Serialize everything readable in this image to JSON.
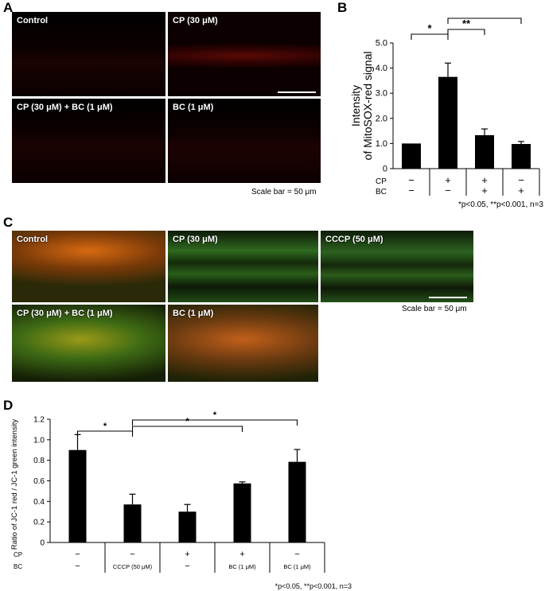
{
  "panel_labels": {
    "a": "A",
    "b": "B",
    "c": "C",
    "d": "D"
  },
  "panel_a": {
    "images": [
      "Control",
      "CP (30 μM)",
      "CP (30 μM) + BC (1 μM)",
      "BC (1 μM)"
    ],
    "scale_bar": "Scale bar = 50 μm"
  },
  "panel_c": {
    "images": [
      "Control",
      "CP (30 μM)",
      "CCCP (50 μM)",
      "CP (30 μM) + BC (1 μM)",
      "BC (1 μM)"
    ],
    "scale_bar": "Scale bar = 50 μm"
  },
  "colors": {
    "bar": "#000000",
    "red_stain": "#ff2a10",
    "green_stain": "#3fbf3a",
    "orange_stain": "#ff9a1e"
  },
  "chart_data": [
    {
      "type": "bar",
      "panel": "B",
      "categories": [
        "1",
        "2",
        "3",
        "4"
      ],
      "values": [
        1.0,
        3.65,
        1.33,
        0.98
      ],
      "errors": [
        0.0,
        0.55,
        0.25,
        0.1
      ],
      "ylabel_line1": "Intensity",
      "ylabel_line2": "of MitoSOX-red signal",
      "ylim": [
        0,
        5.0
      ],
      "yticks": [
        "0",
        "1.0",
        "2.0",
        "3.0",
        "4.0",
        "5.0"
      ],
      "row_labels": [
        "CP",
        "BC"
      ],
      "row_cp": [
        "−",
        "+",
        "+",
        "−"
      ],
      "row_bc": [
        "−",
        "−",
        "+",
        "+"
      ],
      "significance": [
        "*",
        "**",
        "**"
      ],
      "footnote": "*p<0.05, **p<0.001, n=3"
    },
    {
      "type": "bar",
      "panel": "D",
      "categories": [
        "1",
        "2",
        "3",
        "4",
        "5"
      ],
      "values": [
        0.9,
        0.37,
        0.3,
        0.575,
        0.785
      ],
      "errors": [
        0.15,
        0.1,
        0.07,
        0.015,
        0.12
      ],
      "ylabel": "Ratio of JC-1 red / JC-1 green intensity",
      "ylim": [
        0,
        1.2
      ],
      "yticks": [
        "0",
        "0.2",
        "0.4",
        "0.6",
        "0.8",
        "1.0",
        "1.2"
      ],
      "row_labels": [
        "CP",
        "BC"
      ],
      "row_cp": [
        "−",
        "−",
        "+",
        "+",
        "−"
      ],
      "row_bc": [
        "−",
        "CCCP (50 μM)",
        "−",
        "BC (1 μM)",
        "BC (1 μM)"
      ],
      "significance": [
        "*",
        "*",
        "*"
      ],
      "footnote": "*p<0.05, **p<0.001, n=3"
    }
  ]
}
